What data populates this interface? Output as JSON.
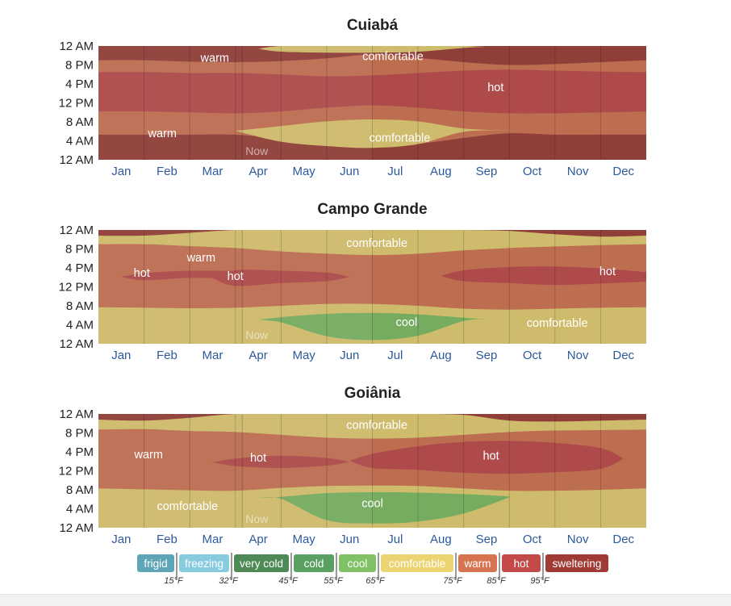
{
  "chart_data": {
    "type": "heatmap",
    "months": [
      "Jan",
      "Feb",
      "Mar",
      "Apr",
      "May",
      "Jun",
      "Jul",
      "Aug",
      "Sep",
      "Oct",
      "Nov",
      "Dec"
    ],
    "hour_ticks": [
      "12 AM",
      "8 PM",
      "4 PM",
      "12 PM",
      "8 AM",
      "4 AM",
      "12 AM"
    ],
    "now_label": "Now",
    "now_month": 3.15,
    "categories": [
      {
        "key": "frigid",
        "label": "frigid",
        "color": "#5ea5b8"
      },
      {
        "key": "freezing",
        "label": "freezing",
        "color": "#87cbdf"
      },
      {
        "key": "verycold",
        "label": "very cold",
        "color": "#4e8a55"
      },
      {
        "key": "cold",
        "label": "cold",
        "color": "#5ba063"
      },
      {
        "key": "cool",
        "label": "cool",
        "color": "#7fc164"
      },
      {
        "key": "comfortable",
        "label": "comfortable",
        "color": "#ecd473"
      },
      {
        "key": "warm",
        "label": "warm",
        "color": "#d67451"
      },
      {
        "key": "hot",
        "label": "hot",
        "color": "#c44a4a"
      },
      {
        "key": "sweltering",
        "label": "sweltering",
        "color": "#9f3b34"
      }
    ],
    "thresholds": [
      "15°F",
      "32°F",
      "45°F",
      "55°F",
      "65°F",
      "75°F",
      "85°F",
      "95°F"
    ],
    "panels": [
      {
        "title": "Cuiabá",
        "base": "sweltering",
        "bands": [
          {
            "cat": "warm",
            "lower": [
              5.3,
              5.3,
              5.3,
              5.3,
              4.5,
              3.6,
              3.2,
              3.4,
              4.6,
              5.6,
              5.3,
              5.3,
              5.3
            ],
            "upper": [
              21,
              21,
              20.7,
              20.6,
              20.8,
              21.4,
              22.2,
              21.5,
              20.6,
              20,
              20.2,
              20.6,
              21
            ]
          },
          {
            "cat": "hot",
            "lower": [
              10.2,
              10.2,
              10,
              9.8,
              10.2,
              11,
              11.5,
              11,
              10.2,
              9.8,
              9.8,
              10,
              10.2
            ],
            "upper": [
              18.5,
              18.5,
              18.3,
              18.3,
              18,
              17.6,
              17.8,
              18.3,
              18.8,
              19,
              18.8,
              18.6,
              18.5
            ]
          },
          {
            "cat": "comfortable",
            "lower": [
              null,
              null,
              null,
              null,
              22.8,
              22.6,
              22.6,
              22.8,
              23.6,
              null,
              null,
              null,
              null
            ],
            "upper": [
              null,
              null,
              null,
              null,
              24,
              24,
              24,
              24,
              24,
              null,
              null,
              null,
              null
            ]
          },
          {
            "cat": "comfortable",
            "lower": [
              null,
              null,
              null,
              6.1,
              3.8,
              2.9,
              2.5,
              3.3,
              5.9,
              6.2,
              null,
              null,
              null
            ],
            "upper": [
              null,
              null,
              null,
              6.1,
              7.1,
              8.1,
              8.5,
              8.1,
              6.6,
              6.2,
              null,
              null,
              null
            ]
          }
        ],
        "labels": [
          {
            "text": "warm",
            "month": 2.55,
            "hour": 21.5
          },
          {
            "text": "comfortable",
            "month": 6.45,
            "hour": 21.9
          },
          {
            "text": "hot",
            "month": 8.7,
            "hour": 15.3
          },
          {
            "text": "warm",
            "month": 1.4,
            "hour": 5.6
          },
          {
            "text": "comfortable",
            "month": 6.6,
            "hour": 4.7
          }
        ]
      },
      {
        "title": "Campo Grande",
        "base": "warm",
        "bands": [
          {
            "cat": "comfortable",
            "lower": [
              0,
              0,
              0,
              0,
              0,
              0,
              0,
              0,
              0,
              0,
              0,
              0,
              0
            ],
            "upper": [
              7.7,
              7.6,
              7.5,
              7.6,
              8,
              8.4,
              8.4,
              8,
              7.4,
              7.2,
              7.4,
              7.6,
              7.7
            ]
          },
          {
            "cat": "comfortable",
            "lower": [
              21,
              21,
              20.6,
              20.2,
              19.5,
              19,
              18.7,
              19,
              19.7,
              20.2,
              20.5,
              20.8,
              21
            ],
            "upper": [
              24,
              24,
              24,
              24,
              24,
              24,
              24,
              24,
              24,
              24,
              24,
              24,
              24
            ]
          },
          {
            "cat": "sweltering",
            "lower": [
              22.8,
              22.8,
              23.4,
              24,
              24,
              24,
              24,
              24,
              24,
              23.8,
              23.1,
              22.6,
              22.8
            ],
            "upper": [
              24,
              24,
              24,
              24,
              24,
              24,
              24,
              24,
              24,
              24,
              24,
              24,
              24
            ]
          },
          {
            "cat": "hot",
            "lower": [
              null,
              13.4,
              13.9,
              13.8,
              null,
              null,
              null,
              null,
              null,
              null,
              null,
              null,
              null
            ],
            "upper": [
              null,
              14.9,
              15.4,
              15.3,
              null,
              null,
              null,
              null,
              null,
              null,
              null,
              null,
              null
            ]
          },
          {
            "cat": "hot",
            "lower": [
              null,
              null,
              null,
              12.2,
              12.8,
              13.2,
              null,
              null,
              null,
              null,
              null,
              null,
              null
            ],
            "upper": [
              null,
              null,
              null,
              15.5,
              15.4,
              15,
              null,
              null,
              null,
              null,
              null,
              null,
              null
            ]
          },
          {
            "cat": "hot",
            "lower": [
              null,
              null,
              null,
              null,
              null,
              null,
              null,
              null,
              13.2,
              12.8,
              12.4,
              12.7,
              13.1
            ],
            "upper": [
              null,
              null,
              null,
              null,
              null,
              null,
              null,
              null,
              15.5,
              16.2,
              16.3,
              15.9,
              15.1
            ]
          },
          {
            "cat": "cool",
            "lower": [
              null,
              null,
              null,
              null,
              4.5,
              1.6,
              0.8,
              1.7,
              4.8,
              null,
              null,
              null,
              null
            ],
            "upper": [
              null,
              null,
              null,
              null,
              5.6,
              6.3,
              6.5,
              6.2,
              5.5,
              null,
              null,
              null,
              null
            ]
          }
        ],
        "labels": [
          {
            "text": "comfortable",
            "month": 6.1,
            "hour": 21.3
          },
          {
            "text": "warm",
            "month": 2.25,
            "hour": 18.2
          },
          {
            "text": "hot",
            "month": 0.95,
            "hour": 15
          },
          {
            "text": "hot",
            "month": 3,
            "hour": 14.3
          },
          {
            "text": "hot",
            "month": 11.15,
            "hour": 15.3
          },
          {
            "text": "cool",
            "month": 6.75,
            "hour": 4.6
          },
          {
            "text": "comfortable",
            "month": 10.05,
            "hour": 4.4
          }
        ]
      },
      {
        "title": "Goiânia",
        "base": "warm",
        "bands": [
          {
            "cat": "comfortable",
            "lower": [
              0,
              0,
              0,
              0,
              0,
              0,
              0,
              0,
              0,
              0,
              0,
              0,
              0
            ],
            "upper": [
              8.3,
              8.1,
              7.9,
              7.8,
              8.4,
              8.8,
              8.9,
              8.8,
              8.3,
              7.8,
              7.8,
              8,
              8.3
            ]
          },
          {
            "cat": "comfortable",
            "lower": [
              20.7,
              20.8,
              20.4,
              20.2,
              19.6,
              19,
              18.8,
              19,
              19.6,
              20.2,
              20.5,
              20.6,
              20.7
            ],
            "upper": [
              24,
              24,
              24,
              24,
              24,
              24,
              24,
              24,
              24,
              24,
              24,
              24,
              24
            ]
          },
          {
            "cat": "sweltering",
            "lower": [
              22.8,
              22.6,
              23.2,
              24,
              24,
              24,
              24,
              24,
              23.8,
              22.6,
              22.4,
              22.6,
              22.8
            ],
            "upper": [
              24,
              24,
              24,
              24,
              24,
              24,
              24,
              24,
              24,
              24,
              24,
              24,
              24
            ]
          },
          {
            "cat": "hot",
            "lower": [
              null,
              null,
              null,
              13,
              12.6,
              13.1,
              null,
              null,
              null,
              null,
              null,
              null,
              null
            ],
            "upper": [
              null,
              null,
              null,
              14.6,
              15.2,
              14.7,
              null,
              null,
              null,
              null,
              null,
              null,
              null
            ]
          },
          {
            "cat": "hot",
            "lower": [
              null,
              null,
              null,
              null,
              null,
              null,
              12.6,
              12.2,
              11.6,
              11.4,
              11.7,
              12.4,
              null
            ],
            "upper": [
              null,
              null,
              null,
              null,
              null,
              null,
              15.6,
              17.2,
              18.1,
              18.3,
              17.9,
              16.8,
              null
            ]
          },
          {
            "cat": "cool",
            "lower": [
              null,
              null,
              null,
              null,
              6.1,
              1.6,
              0.9,
              1.3,
              3,
              6.4,
              null,
              null,
              null
            ],
            "upper": [
              null,
              null,
              null,
              null,
              6.5,
              7.3,
              7.5,
              7.4,
              7.1,
              6.6,
              null,
              null,
              null
            ]
          }
        ],
        "labels": [
          {
            "text": "comfortable",
            "month": 6.1,
            "hour": 21.7
          },
          {
            "text": "warm",
            "month": 1.1,
            "hour": 15.5
          },
          {
            "text": "hot",
            "month": 3.5,
            "hour": 14.8
          },
          {
            "text": "hot",
            "month": 8.6,
            "hour": 15.2
          },
          {
            "text": "comfortable",
            "month": 1.95,
            "hour": 4.6
          },
          {
            "text": "cool",
            "month": 6.0,
            "hour": 5.2
          }
        ]
      }
    ]
  }
}
